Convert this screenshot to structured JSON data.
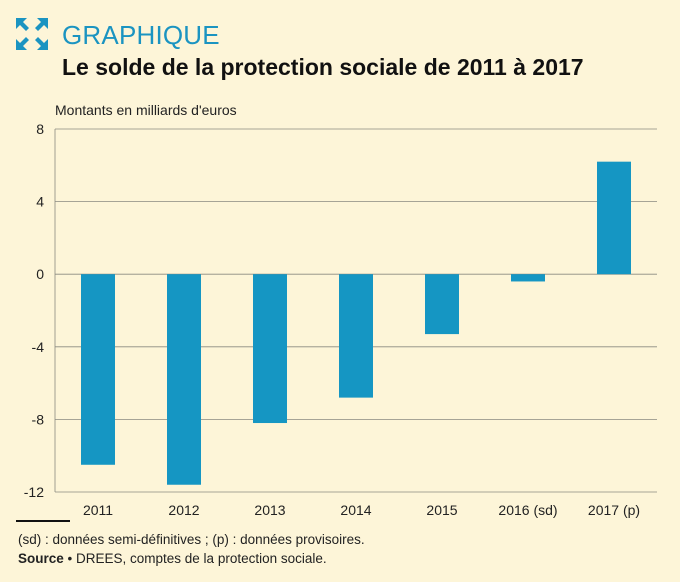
{
  "header": {
    "label": "GRAPHIQUE",
    "title": "Le solde de la protection sociale de 2011 à 2017",
    "icon": "expand-arrows-icon"
  },
  "colors": {
    "accent": "#1b94c1",
    "bar": "#1596c3",
    "background": "#fdf5d8",
    "grid": "#8a8a80"
  },
  "chart_data": {
    "type": "bar",
    "ylabel": "Montants en milliards d'euros",
    "categories": [
      "2011",
      "2012",
      "2013",
      "2014",
      "2015",
      "2016 (sd)",
      "2017 (p)"
    ],
    "values": [
      -10.5,
      -11.6,
      -8.2,
      -6.8,
      -3.3,
      -0.4,
      6.2
    ],
    "ylim": [
      -12,
      8
    ],
    "yticks": [
      8,
      4,
      0,
      -4,
      -8,
      -12
    ],
    "ytick_labels": [
      "8",
      "4",
      "0",
      "-4",
      "-8",
      "-12"
    ],
    "grid": true
  },
  "footer": {
    "note": "(sd) : données semi-définitives ; (p) : données provisoires.",
    "source_label": "Source",
    "source_text": " • DREES, comptes de la protection sociale."
  }
}
